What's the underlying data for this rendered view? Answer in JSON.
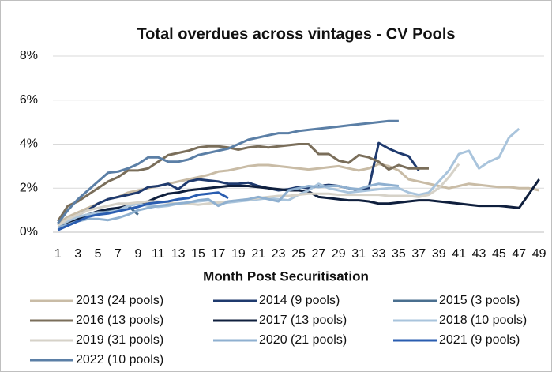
{
  "chart_data": {
    "type": "line",
    "title": "Total overdues across vintages - CV Pools",
    "x_label": "Month Post Securitisation",
    "x": [
      1,
      2,
      3,
      4,
      5,
      6,
      7,
      8,
      9,
      10,
      11,
      12,
      13,
      14,
      15,
      16,
      17,
      18,
      19,
      20,
      21,
      22,
      23,
      24,
      25,
      26,
      27,
      28,
      29,
      30,
      31,
      32,
      33,
      34,
      35,
      36,
      37,
      38,
      39,
      40,
      41,
      42,
      43,
      44,
      45,
      46,
      47,
      48,
      49
    ],
    "xlim": [
      0.5,
      49.5
    ],
    "xticks": [
      1,
      3,
      5,
      7,
      9,
      11,
      13,
      15,
      17,
      19,
      21,
      23,
      25,
      27,
      29,
      31,
      33,
      35,
      37,
      39,
      41,
      43,
      45,
      47,
      49
    ],
    "ylim": [
      0,
      8
    ],
    "yticks": [
      {
        "value": 0,
        "label": "0%"
      },
      {
        "value": 2,
        "label": "2%"
      },
      {
        "value": 4,
        "label": "4%"
      },
      {
        "value": 6,
        "label": "6%"
      },
      {
        "value": 8,
        "label": "8%"
      }
    ],
    "grid": true,
    "legend": "bottom",
    "series": [
      {
        "name": "2013 (24 pools)",
        "color": "#c9bca6",
        "values": [
          0.4,
          0.7,
          0.9,
          1.1,
          1.3,
          1.5,
          1.6,
          1.8,
          1.9,
          2.0,
          2.1,
          2.2,
          2.3,
          2.4,
          2.5,
          2.6,
          2.75,
          2.8,
          2.9,
          3.0,
          3.05,
          3.05,
          3.0,
          2.95,
          2.9,
          2.85,
          2.9,
          2.95,
          3.0,
          2.9,
          2.8,
          2.9,
          3.1,
          3.0,
          2.8,
          2.4,
          2.3,
          2.2,
          2.1,
          2.0,
          2.1,
          2.2,
          2.15,
          2.1,
          2.05,
          2.05,
          2.0,
          2.0,
          1.9
        ]
      },
      {
        "name": "2014 (9 pools)",
        "color": "#1f3a6e",
        "values": [
          0.3,
          0.5,
          0.8,
          1.0,
          1.3,
          1.5,
          1.6,
          1.7,
          1.8,
          2.05,
          2.1,
          2.2,
          1.95,
          2.3,
          2.4,
          2.35,
          2.3,
          2.2,
          2.2,
          2.25,
          2.1,
          2.0,
          1.9,
          1.95,
          2.05,
          2.0,
          2.1,
          2.15,
          2.1,
          2.0,
          1.9,
          2.0,
          4.05,
          3.8,
          3.6,
          3.45,
          2.8,
          null,
          null,
          null,
          null,
          null,
          null,
          null,
          null,
          null,
          null,
          null,
          null
        ]
      },
      {
        "name": "2015 (3 pools)",
        "color": "#4a6f8f",
        "values": [
          0.3,
          0.5,
          0.7,
          0.8,
          0.9,
          0.95,
          1.0,
          1.2,
          0.8,
          null,
          null,
          null,
          null,
          null,
          null,
          null,
          null,
          null,
          null,
          null,
          null,
          null,
          null,
          null,
          null,
          null,
          null,
          null,
          null,
          null,
          null,
          null,
          null,
          null,
          null,
          null,
          null,
          null,
          null,
          null,
          null,
          null,
          null,
          null,
          null,
          null,
          null,
          null,
          null
        ]
      },
      {
        "name": "2016 (13 pools)",
        "color": "#7a6e5a",
        "values": [
          0.5,
          1.2,
          1.4,
          1.7,
          2.0,
          2.3,
          2.5,
          2.8,
          2.8,
          2.9,
          3.2,
          3.5,
          3.6,
          3.7,
          3.85,
          3.9,
          3.9,
          3.85,
          3.75,
          3.85,
          3.9,
          3.85,
          3.9,
          3.95,
          4.0,
          4.0,
          3.55,
          3.55,
          3.25,
          3.15,
          3.5,
          3.4,
          3.2,
          2.85,
          3.05,
          2.9,
          2.9,
          2.9,
          null,
          null,
          null,
          null,
          null,
          null,
          null,
          null,
          null,
          null,
          null
        ]
      },
      {
        "name": "2017 (13 pools)",
        "color": "#0f1f3d",
        "values": [
          0.2,
          0.4,
          0.6,
          0.8,
          0.95,
          1.05,
          1.1,
          1.2,
          1.3,
          1.4,
          1.6,
          1.75,
          1.8,
          1.9,
          1.95,
          2.0,
          2.05,
          2.1,
          2.1,
          2.1,
          2.05,
          2.0,
          1.95,
          1.9,
          1.9,
          1.85,
          1.6,
          1.55,
          1.5,
          1.45,
          1.45,
          1.4,
          1.3,
          1.3,
          1.35,
          1.4,
          1.45,
          1.45,
          1.4,
          1.35,
          1.3,
          1.25,
          1.2,
          1.2,
          1.2,
          1.15,
          1.1,
          1.75,
          2.4
        ]
      },
      {
        "name": "2018 (10 pools)",
        "color": "#a9c4dc",
        "values": [
          0.3,
          0.5,
          0.7,
          0.8,
          0.9,
          0.9,
          1.0,
          1.2,
          1.3,
          1.2,
          1.15,
          1.2,
          1.3,
          1.35,
          1.4,
          1.45,
          1.3,
          1.35,
          1.4,
          1.45,
          1.5,
          1.55,
          1.5,
          1.45,
          1.7,
          1.9,
          2.2,
          2.0,
          1.9,
          1.8,
          1.85,
          1.9,
          1.95,
          2.0,
          2.0,
          1.8,
          1.7,
          1.8,
          2.3,
          2.8,
          3.55,
          3.7,
          2.9,
          3.2,
          3.4,
          4.3,
          4.7,
          null,
          null
        ]
      },
      {
        "name": "2019 (31 pools)",
        "color": "#d6d2c8",
        "values": [
          0.3,
          0.6,
          0.8,
          1.0,
          1.1,
          1.2,
          1.3,
          1.3,
          1.35,
          1.4,
          1.4,
          1.35,
          1.3,
          1.3,
          1.25,
          1.3,
          1.35,
          1.4,
          1.45,
          1.5,
          1.55,
          1.6,
          1.65,
          1.65,
          1.7,
          1.75,
          1.75,
          1.75,
          1.7,
          1.7,
          1.7,
          1.7,
          1.7,
          1.65,
          1.65,
          1.65,
          1.6,
          1.7,
          2.0,
          2.5,
          3.1,
          null,
          null,
          null,
          null,
          null,
          null,
          null,
          null
        ]
      },
      {
        "name": "2020 (21 pools)",
        "color": "#8fb0d0",
        "values": [
          0.2,
          0.35,
          0.5,
          0.6,
          0.6,
          0.55,
          0.65,
          0.8,
          1.0,
          1.1,
          1.2,
          1.25,
          1.3,
          1.35,
          1.45,
          1.5,
          1.2,
          1.4,
          1.45,
          1.5,
          1.6,
          1.5,
          1.4,
          1.9,
          2.0,
          2.1,
          2.05,
          2.1,
          2.1,
          2.0,
          1.95,
          2.1,
          2.2,
          2.15,
          2.1,
          null,
          null,
          null,
          null,
          null,
          null,
          null,
          null,
          null,
          null,
          null,
          null,
          null,
          null
        ]
      },
      {
        "name": "2021 (9 pools)",
        "color": "#2a5db0",
        "values": [
          0.1,
          0.3,
          0.5,
          0.7,
          0.8,
          0.85,
          0.95,
          1.05,
          1.15,
          1.3,
          1.35,
          1.4,
          1.5,
          1.55,
          1.7,
          1.75,
          1.8,
          1.55,
          null,
          null,
          null,
          null,
          null,
          null,
          null,
          null,
          null,
          null,
          null,
          null,
          null,
          null,
          null,
          null,
          null,
          null,
          null,
          null,
          null,
          null,
          null,
          null,
          null,
          null,
          null,
          null,
          null,
          null,
          null
        ]
      },
      {
        "name": "2022 (10 pools)",
        "color": "#5b7fa6",
        "values": [
          0.4,
          1.0,
          1.5,
          1.9,
          2.3,
          2.7,
          2.75,
          2.9,
          3.1,
          3.4,
          3.4,
          3.2,
          3.2,
          3.3,
          3.5,
          3.6,
          3.7,
          3.8,
          4.0,
          4.2,
          4.3,
          4.4,
          4.5,
          4.5,
          4.6,
          4.65,
          4.7,
          4.75,
          4.8,
          4.85,
          4.9,
          4.95,
          5.0,
          5.05,
          5.05,
          null,
          null,
          null,
          null,
          null,
          null,
          null,
          null,
          null,
          null,
          null,
          null,
          null,
          null
        ]
      }
    ]
  }
}
